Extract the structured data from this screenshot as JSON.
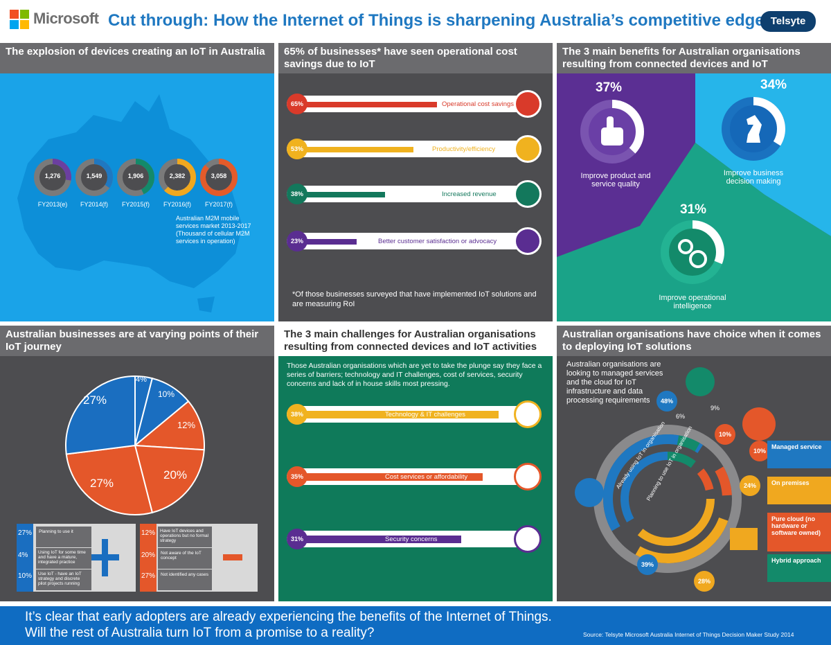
{
  "header": {
    "brand": "Microsoft",
    "title": "Cut through: How the Internet of Things is sharpening Australia’s competitive edge.",
    "partner": "Telsyte"
  },
  "panel1": {
    "title": "The explosion of devices creating an IoT in Australia",
    "caption": "Australian M2M mobile services market 2013-2017 (Thousand of cellular M2M services in operation)",
    "items": [
      {
        "value": "1,276",
        "label": "FY2013(e)",
        "color": "#6b3fa0"
      },
      {
        "value": "1,549",
        "label": "FY2014(f)",
        "color": "#1f78c1"
      },
      {
        "value": "1,906",
        "label": "FY2015(f)",
        "color": "#138a6a"
      },
      {
        "value": "2,382",
        "label": "FY2016(f)",
        "color": "#f0a81f"
      },
      {
        "value": "3,058",
        "label": "FY2017(f)",
        "color": "#e45b2a"
      }
    ]
  },
  "panel2": {
    "title": "65% of businesses* have seen operational cost savings due to IoT",
    "bars": [
      {
        "pct": "65%",
        "value": 65,
        "label": "Operational cost savings",
        "color": "#d93a2a"
      },
      {
        "pct": "53%",
        "value": 53,
        "label": "Productivity/efficiency",
        "color": "#f0b21f"
      },
      {
        "pct": "38%",
        "value": 38,
        "label": "Increased revenue",
        "color": "#13785c"
      },
      {
        "pct": "23%",
        "value": 23,
        "label": "Better customer satisfaction or advocacy",
        "color": "#5a2d91"
      }
    ],
    "footnote": "*Of those businesses surveyed that have implemented IoT solutions and are measuring RoI"
  },
  "panel3": {
    "title": "The 3 main benefits for Australian organisations resulting from connected devices and IoT",
    "items": [
      {
        "pct": "37%",
        "label": "Improve product and service quality"
      },
      {
        "pct": "34%",
        "label": "Improve business decision making"
      },
      {
        "pct": "31%",
        "label": "Improve operational intelligence"
      }
    ]
  },
  "panel4": {
    "title": "Australian businesses are at varying points of their IoT journey",
    "pie": {
      "slices": [
        {
          "pct": "4%",
          "value": 4,
          "color": "#1a6ec0"
        },
        {
          "pct": "10%",
          "value": 10,
          "color": "#1a6ec0"
        },
        {
          "pct": "12%",
          "value": 12,
          "color": "#e4572a"
        },
        {
          "pct": "20%",
          "value": 20,
          "color": "#e4572a"
        },
        {
          "pct": "27%",
          "value": 27,
          "color": "#e4572a"
        },
        {
          "pct": "27%",
          "value": 27,
          "color": "#1a6ec0"
        }
      ]
    },
    "plus_items": [
      {
        "pct": "27%",
        "text": "Planning to use it"
      },
      {
        "pct": "4%",
        "text": "Using IoT for some time and have a mature, integrated practice"
      },
      {
        "pct": "10%",
        "text": "Use IoT - have an IoT strategy and discrete pilot projects running"
      }
    ],
    "minus_items": [
      {
        "pct": "12%",
        "text": "Have IoT devices and operations but no formal strategy"
      },
      {
        "pct": "20%",
        "text": "Not aware of the IoT concept"
      },
      {
        "pct": "27%",
        "text": "Not identified any cases"
      }
    ]
  },
  "panel5": {
    "title": "The 3 main challenges for Australian organisations resulting from connected devices and IoT activities",
    "intro": "Those Australian organisations which are yet to take the plunge say they face a series of barriers; technology and IT challenges, cost of services, security concerns and lack of in house skills most pressing.",
    "bars": [
      {
        "pct": "38%",
        "value": 38,
        "label": "Technology & IT challenges",
        "color": "#f0b21f"
      },
      {
        "pct": "35%",
        "value": 35,
        "label": "Cost services or affordability",
        "color": "#e4572a"
      },
      {
        "pct": "31%",
        "value": 31,
        "label": "Security concerns",
        "color": "#5a2d91"
      }
    ]
  },
  "panel6": {
    "title": "Australian organisations have choice when it comes to deploying IoT solutions",
    "intro": "Australian organisations are looking to managed services and the cloud for IoT infrastructure and data processing requirements",
    "ring_label_outer": "Already using IoT in organisation",
    "ring_label_inner": "Planning to use IoT in organisation",
    "callouts": {
      "p48": "48%",
      "p6": "6%",
      "p9": "9%",
      "p10a": "10%",
      "p10b": "10%",
      "p24": "24%",
      "p39": "39%",
      "p28": "28%"
    },
    "legend": [
      {
        "label": "Managed service",
        "color": "#1f78c1"
      },
      {
        "label": "On premises",
        "color": "#f0a81f"
      },
      {
        "label": "Pure cloud (no hardware or software owned)",
        "color": "#e4572a"
      },
      {
        "label": "Hybrid approach",
        "color": "#138a6a"
      }
    ]
  },
  "footer": {
    "line1": "It’s clear that early adopters are already experiencing the benefits of the Internet of Things.",
    "line2": "Will the rest of Australia turn IoT from a promise to a reality?",
    "source": "Source: Telsyte Microsoft Australia Internet of Things Decision Maker Study 2014"
  }
}
